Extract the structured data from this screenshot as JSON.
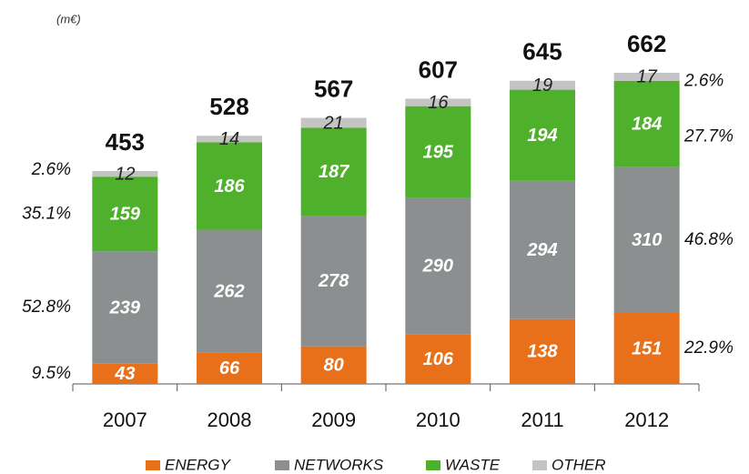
{
  "chart_data": {
    "type": "stacked_bar",
    "unit_label": "(m€)",
    "categories": [
      "2007",
      "2008",
      "2009",
      "2010",
      "2011",
      "2012"
    ],
    "series": [
      {
        "name": "ENERGY",
        "color": "#e8701a",
        "label_color": "#ffffff",
        "values": [
          43,
          66,
          80,
          106,
          138,
          151
        ]
      },
      {
        "name": "NETWORKS",
        "color": "#8c8f90",
        "label_color": "#ffffff",
        "values": [
          239,
          262,
          278,
          290,
          294,
          310
        ]
      },
      {
        "name": "WASTE",
        "color": "#4fb02c",
        "label_color": "#ffffff",
        "values": [
          159,
          186,
          187,
          195,
          194,
          184
        ]
      },
      {
        "name": "OTHER",
        "color": "#c4c4c4",
        "label_color": "#222222",
        "values": [
          12,
          14,
          21,
          16,
          19,
          17
        ]
      }
    ],
    "totals": [
      453,
      528,
      567,
      607,
      645,
      662
    ],
    "shares_first": [
      "9.5%",
      "52.8%",
      "35.1%",
      "2.6%"
    ],
    "shares_last": [
      "22.9%",
      "46.8%",
      "27.7%",
      "2.6%"
    ]
  }
}
